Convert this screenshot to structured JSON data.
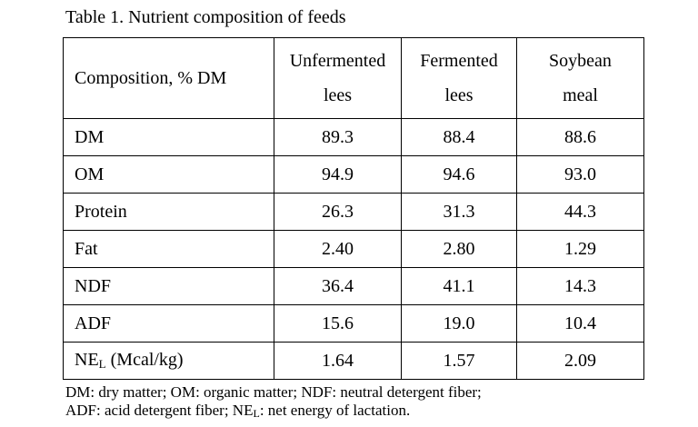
{
  "caption": "Table 1. Nutrient composition of feeds",
  "table": {
    "header": {
      "composition": "Composition, % DM",
      "col1_line1": "Unfermented",
      "col1_line2": "lees",
      "col2_line1": "Fermented",
      "col2_line2": "lees",
      "col3_line1": "Soybean",
      "col3_line2": "meal"
    },
    "rows": [
      {
        "label": "DM",
        "values": [
          "89.3",
          "88.4",
          "88.6"
        ]
      },
      {
        "label": "OM",
        "values": [
          "94.9",
          "94.6",
          "93.0"
        ]
      },
      {
        "label": "Protein",
        "values": [
          "26.3",
          "31.3",
          "44.3"
        ]
      },
      {
        "label": "Fat",
        "values": [
          "2.40",
          "2.80",
          "1.29"
        ]
      },
      {
        "label": "NDF",
        "values": [
          "36.4",
          "41.1",
          "14.3"
        ]
      },
      {
        "label": "ADF",
        "values": [
          "15.6",
          "19.0",
          "10.4"
        ]
      },
      {
        "label_main": "NE",
        "label_sub": "L",
        "label_rest": " (Mcal/kg)",
        "values": [
          "1.64",
          "1.57",
          "2.09"
        ]
      }
    ]
  },
  "footnote": {
    "line1": "DM: dry matter; OM: organic matter; NDF: neutral detergent fiber;",
    "line2_a": "ADF: acid detergent fiber; NE",
    "line2_sub": "L",
    "line2_b": ": net energy of lactation."
  }
}
